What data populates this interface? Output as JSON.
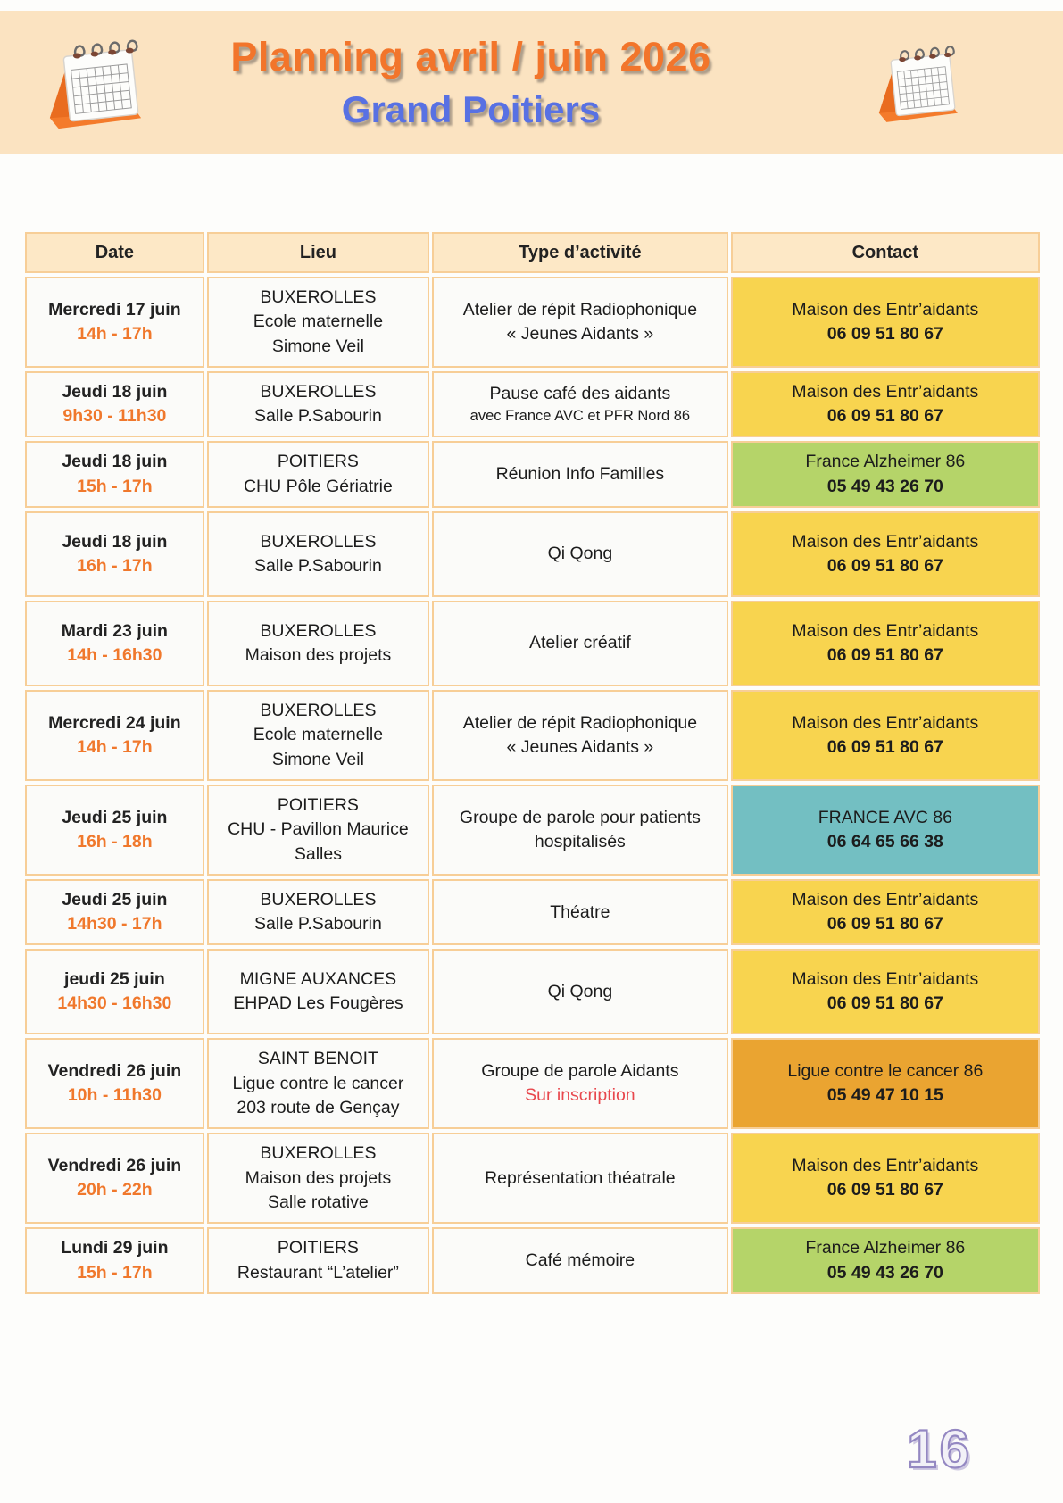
{
  "page": {
    "title_line1": "Planning avril / juin 2026",
    "title_line2": "Grand Poitiers",
    "page_number": "16"
  },
  "header": {
    "left_icon": "calendar-icon",
    "right_icon": "calendar-icon"
  },
  "colors": {
    "banner_bg": "#FBE3C1",
    "title_orange": "#F2752B",
    "subtitle_blue": "#5871E3",
    "table_border": "#F7CE97",
    "header_cell_bg": "#FDE8C6",
    "time_orange": "#F0782C",
    "alert_red": "#E8474D",
    "page_number_purple": "#9488C2",
    "contact": {
      "yellow": "#F8D44F",
      "green": "#B5D469",
      "teal": "#73BFC2",
      "orange": "#EAA431"
    }
  },
  "table": {
    "headers": [
      "Date",
      "Lieu",
      "Type d’activité",
      "Contact"
    ],
    "rows": [
      {
        "date": "Mercredi 17 juin",
        "time": "14h - 17h",
        "location": [
          "BUXEROLLES",
          "Ecole maternelle",
          "Simone Veil"
        ],
        "activity": [
          "Atelier de répit Radiophonique",
          "« Jeunes Aidants »"
        ],
        "activity_note": "",
        "activity_note_style": "",
        "contact_name": "Maison des Entr’aidants",
        "contact_phone": "06 09 51 80 67",
        "contact_color": "yellow"
      },
      {
        "date": "Jeudi 18 juin",
        "time": "9h30 - 11h30",
        "location": [
          "BUXEROLLES",
          "Salle P.Sabourin"
        ],
        "activity": [
          "Pause café des aidants"
        ],
        "activity_note": "avec France AVC et PFR Nord 86",
        "activity_note_style": "note",
        "contact_name": "Maison des Entr’aidants",
        "contact_phone": "06 09 51 80 67",
        "contact_color": "yellow"
      },
      {
        "date": "Jeudi 18 juin",
        "time": "15h - 17h",
        "location": [
          "POITIERS",
          "CHU Pôle Gériatrie"
        ],
        "activity": [
          "Réunion Info Familles"
        ],
        "activity_note": "",
        "activity_note_style": "",
        "contact_name": "France Alzheimer 86",
        "contact_phone": "05 49 43 26 70",
        "contact_color": "green"
      },
      {
        "date": "Jeudi 18 juin",
        "time": "16h - 17h",
        "location": [
          "BUXEROLLES",
          "Salle P.Sabourin"
        ],
        "activity": [
          "Qi Qong"
        ],
        "activity_note": "",
        "activity_note_style": "",
        "contact_name": "Maison des Entr’aidants",
        "contact_phone": "06 09 51 80 67",
        "contact_color": "yellow"
      },
      {
        "date": "Mardi 23 juin",
        "time": "14h - 16h30",
        "location": [
          "BUXEROLLES",
          "Maison des projets"
        ],
        "activity": [
          "Atelier créatif"
        ],
        "activity_note": "",
        "activity_note_style": "",
        "contact_name": "Maison des Entr’aidants",
        "contact_phone": "06 09 51 80 67",
        "contact_color": "yellow"
      },
      {
        "date": "Mercredi 24 juin",
        "time": "14h - 17h",
        "location": [
          "BUXEROLLES",
          "Ecole maternelle",
          "Simone Veil"
        ],
        "activity": [
          "Atelier de répit Radiophonique",
          "« Jeunes Aidants »"
        ],
        "activity_note": "",
        "activity_note_style": "",
        "contact_name": "Maison des Entr’aidants",
        "contact_phone": "06 09 51 80 67",
        "contact_color": "yellow"
      },
      {
        "date": "Jeudi 25 juin",
        "time": "16h - 18h",
        "location": [
          "POITIERS",
          "CHU - Pavillon Maurice",
          "Salles"
        ],
        "activity": [
          "Groupe de parole pour patients",
          "hospitalisés"
        ],
        "activity_note": "",
        "activity_note_style": "",
        "contact_name": "FRANCE AVC 86",
        "contact_phone": "06 64 65 66 38",
        "contact_color": "teal"
      },
      {
        "date": "Jeudi 25 juin",
        "time": "14h30 - 17h",
        "location": [
          "BUXEROLLES",
          "Salle P.Sabourin"
        ],
        "activity": [
          "Théatre"
        ],
        "activity_note": "",
        "activity_note_style": "",
        "contact_name": "Maison des Entr’aidants",
        "contact_phone": "06 09 51 80 67",
        "contact_color": "yellow"
      },
      {
        "date": "jeudi 25 juin",
        "time": "14h30 - 16h30",
        "location": [
          "MIGNE AUXANCES",
          "EHPAD Les Fougères"
        ],
        "activity": [
          "Qi Qong"
        ],
        "activity_note": "",
        "activity_note_style": "",
        "contact_name": "Maison des Entr’aidants",
        "contact_phone": "06 09 51 80 67",
        "contact_color": "yellow"
      },
      {
        "date": "Vendredi 26 juin",
        "time": "10h - 11h30",
        "location": [
          "SAINT BENOIT",
          "Ligue contre le cancer",
          "203 route de Gençay"
        ],
        "activity": [
          "Groupe de parole Aidants"
        ],
        "activity_note": "Sur inscription",
        "activity_note_style": "alert",
        "contact_name": "Ligue contre le cancer 86",
        "contact_phone": "05 49 47 10 15",
        "contact_color": "orange"
      },
      {
        "date": "Vendredi 26 juin",
        "time": "20h - 22h",
        "location": [
          "BUXEROLLES",
          "Maison des projets",
          "Salle rotative"
        ],
        "activity": [
          "Représentation théatrale"
        ],
        "activity_note": "",
        "activity_note_style": "",
        "contact_name": "Maison des Entr’aidants",
        "contact_phone": "06 09 51 80 67",
        "contact_color": "yellow"
      },
      {
        "date": "Lundi 29 juin",
        "time": "15h - 17h",
        "location": [
          "POITIERS",
          "Restaurant “L’atelier”"
        ],
        "activity": [
          "Café mémoire"
        ],
        "activity_note": "",
        "activity_note_style": "",
        "contact_name": "France Alzheimer 86",
        "contact_phone": "05 49 43 26 70",
        "contact_color": "green"
      }
    ]
  }
}
